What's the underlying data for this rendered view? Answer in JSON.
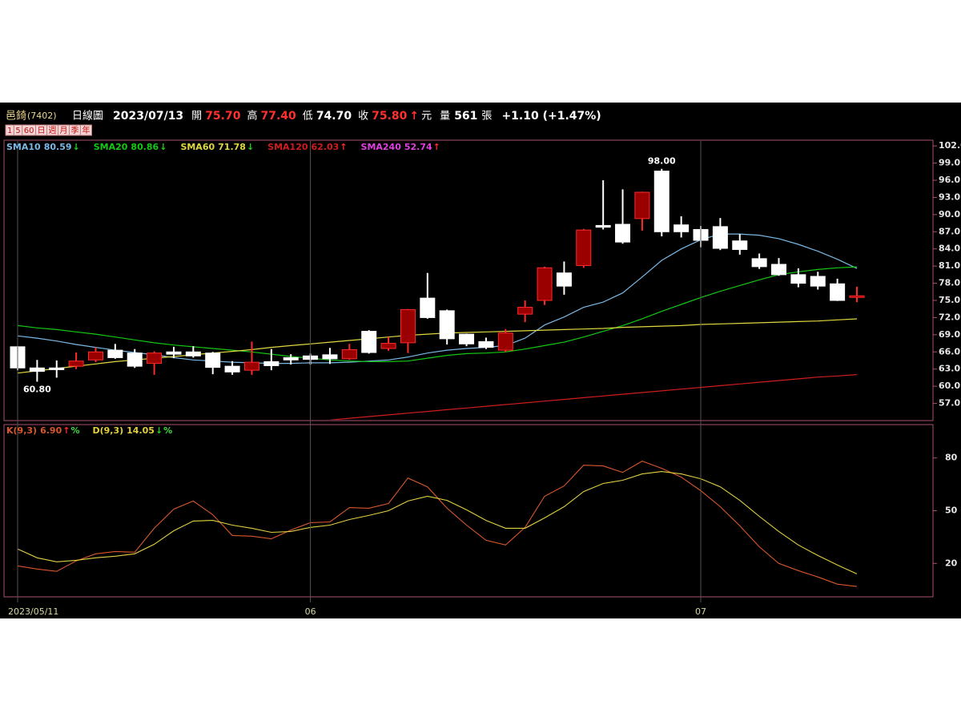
{
  "header": {
    "name": "邑錡",
    "code": "(7402)",
    "period": "日線圖",
    "date": "2023/07/13",
    "fields": [
      {
        "label": "開",
        "value": "75.70",
        "color": "#ff3030"
      },
      {
        "label": "高",
        "value": "77.40",
        "color": "#ff3030"
      },
      {
        "label": "低",
        "value": "74.70",
        "color": "#ffffff"
      },
      {
        "label": "收",
        "value": "75.80",
        "color": "#ff3030"
      }
    ],
    "arrow": "↑",
    "currency": "元",
    "volume_label": "量",
    "volume": "561",
    "volume_unit": "張",
    "change": "+1.10 (+1.47%)"
  },
  "buttons": [
    "1",
    "5",
    "60",
    "日",
    "週",
    "月",
    "季",
    "年"
  ],
  "chart_data": [
    {
      "type": "candlestick",
      "categories": [
        "2023/05/11",
        null,
        null,
        null,
        null,
        null,
        null,
        null,
        null,
        null,
        null,
        null,
        null,
        null,
        null,
        "06",
        null,
        null,
        null,
        null,
        null,
        null,
        null,
        null,
        null,
        null,
        null,
        null,
        null,
        null,
        null,
        null,
        null,
        null,
        null,
        "07",
        null,
        null,
        null,
        null,
        null,
        null,
        null,
        null
      ],
      "open": [
        66.9,
        63.2,
        63.2,
        63.5,
        64.6,
        66.3,
        65.8,
        64.0,
        66.0,
        66.0,
        65.8,
        63.5,
        62.8,
        64.3,
        65.0,
        65.3,
        65.5,
        64.8,
        69.6,
        66.6,
        67.6,
        75.4,
        73.2,
        69.1,
        67.8,
        66.3,
        72.6,
        75.0,
        79.8,
        81.1,
        88.1,
        88.3,
        89.3,
        97.6,
        88.2,
        87.4,
        87.9,
        85.4,
        82.3,
        81.3,
        79.5,
        79.2,
        77.9,
        75.7
      ],
      "high": [
        67.0,
        64.6,
        64.5,
        65.9,
        66.8,
        67.4,
        66.5,
        66.1,
        66.9,
        67.0,
        66.0,
        64.4,
        67.8,
        66.5,
        65.6,
        65.7,
        66.7,
        67.4,
        69.8,
        68.6,
        73.5,
        79.8,
        73.4,
        69.2,
        68.5,
        70.0,
        75.0,
        80.9,
        81.8,
        87.5,
        96.0,
        94.4,
        94.0,
        98.0,
        89.7,
        88.0,
        89.4,
        86.6,
        83.2,
        82.4,
        80.6,
        80.0,
        78.8,
        77.4
      ],
      "low": [
        62.8,
        60.8,
        61.5,
        63.0,
        64.2,
        64.8,
        63.2,
        62.0,
        64.9,
        65.0,
        62.1,
        62.0,
        62.0,
        62.8,
        63.8,
        63.8,
        63.9,
        64.6,
        65.7,
        66.2,
        65.8,
        71.8,
        67.3,
        67.0,
        66.5,
        66.0,
        71.2,
        74.2,
        76.0,
        80.7,
        87.4,
        84.9,
        87.2,
        86.2,
        86.0,
        84.3,
        83.8,
        83.0,
        80.5,
        79.3,
        77.3,
        76.9,
        74.9,
        74.7
      ],
      "close": [
        63.2,
        62.6,
        62.9,
        64.4,
        66.0,
        65.0,
        63.5,
        65.8,
        65.6,
        65.3,
        63.3,
        62.5,
        64.2,
        63.6,
        64.6,
        64.7,
        64.8,
        66.4,
        65.9,
        67.5,
        73.4,
        72.0,
        68.3,
        67.4,
        66.8,
        69.3,
        73.8,
        80.7,
        77.5,
        87.3,
        87.8,
        85.2,
        93.9,
        87.0,
        87.0,
        85.5,
        84.1,
        83.9,
        80.9,
        79.5,
        78.0,
        77.5,
        75.0,
        75.8
      ],
      "up_color": "#9a0000",
      "up_edge": "#ff2a2a",
      "down_color": "#ffffff",
      "high_label": "98.00",
      "low_label": "60.80",
      "ylim": [
        54,
        103
      ],
      "yticks": [
        {
          "value": 57,
          "label": "57.0"
        },
        {
          "value": 60,
          "label": "60.0"
        },
        {
          "value": 63,
          "label": "63.0"
        },
        {
          "value": 66,
          "label": "66.0"
        },
        {
          "value": 69,
          "label": "69.0"
        },
        {
          "value": 72,
          "label": "72.0"
        },
        {
          "value": 75,
          "label": "75.0"
        },
        {
          "value": 78,
          "label": "78.0"
        },
        {
          "value": 81,
          "label": "81.0"
        },
        {
          "value": 84,
          "label": "84.0"
        },
        {
          "value": 87,
          "label": "87.0"
        },
        {
          "value": 90,
          "label": "90.0"
        },
        {
          "value": 93,
          "label": "93.0"
        },
        {
          "value": 96,
          "label": "96.0"
        },
        {
          "value": 99,
          "label": "99.0"
        },
        {
          "value": 102,
          "label": "102.0"
        }
      ],
      "grid": true,
      "series": [
        {
          "name": "SMA10",
          "color": "#7ab8e6",
          "legend_value": "80.59",
          "trend": "↓",
          "values": [
            68.8,
            68.4,
            67.9,
            67.3,
            66.8,
            66.3,
            65.9,
            65.5,
            65.0,
            64.6,
            64.4,
            64.2,
            64.1,
            64.0,
            64.0,
            64.1,
            64.1,
            64.2,
            64.4,
            64.6,
            65.1,
            65.8,
            66.3,
            66.6,
            66.8,
            67.1,
            68.4,
            70.7,
            72.1,
            73.8,
            74.7,
            76.3,
            79.1,
            82.0,
            84.0,
            85.6,
            86.6,
            86.6,
            86.4,
            85.8,
            84.8,
            83.6,
            82.2,
            80.59
          ]
        },
        {
          "name": "SMA20",
          "color": "#14c814",
          "legend_value": "80.86",
          "trend": "↓",
          "values": [
            70.6,
            70.2,
            69.9,
            69.5,
            69.1,
            68.6,
            68.1,
            67.6,
            67.2,
            66.9,
            66.6,
            66.3,
            66.0,
            65.6,
            65.2,
            64.9,
            64.6,
            64.4,
            64.3,
            64.3,
            64.4,
            64.9,
            65.4,
            65.7,
            65.8,
            66.0,
            66.5,
            67.1,
            67.7,
            68.6,
            69.6,
            70.6,
            71.8,
            73.1,
            74.3,
            75.5,
            76.6,
            77.6,
            78.6,
            79.5,
            80.0,
            80.4,
            80.7,
            80.86
          ]
        },
        {
          "name": "SMA60",
          "color": "#e0d840",
          "legend_value": "71.78",
          "trend": "↓",
          "values": [
            62.3,
            62.7,
            63.1,
            63.5,
            63.9,
            64.3,
            64.6,
            64.9,
            65.2,
            65.5,
            65.8,
            66.1,
            66.4,
            66.8,
            67.1,
            67.4,
            67.7,
            68.0,
            68.3,
            68.6,
            68.9,
            69.1,
            69.3,
            69.4,
            69.5,
            69.6,
            69.7,
            69.8,
            69.9,
            70.0,
            70.1,
            70.3,
            70.4,
            70.5,
            70.6,
            70.8,
            70.9,
            71.0,
            71.1,
            71.2,
            71.3,
            71.4,
            71.6,
            71.78
          ]
        },
        {
          "name": "SMA120",
          "color": "#d01c1c",
          "legend_value": "62.03",
          "trend": "↑",
          "values": [
            null,
            null,
            null,
            null,
            null,
            null,
            null,
            null,
            null,
            null,
            null,
            null,
            null,
            null,
            null,
            null,
            54.1,
            54.4,
            54.7,
            55.0,
            55.3,
            55.6,
            55.9,
            56.2,
            56.5,
            56.8,
            57.1,
            57.4,
            57.7,
            58.0,
            58.3,
            58.6,
            58.9,
            59.2,
            59.5,
            59.8,
            60.1,
            60.4,
            60.7,
            61.0,
            61.3,
            61.6,
            61.8,
            62.03
          ]
        },
        {
          "name": "SMA240",
          "color": "#e040e0",
          "legend_value": "52.74",
          "trend": "↑"
        }
      ]
    },
    {
      "type": "line",
      "ylim": [
        1,
        99
      ],
      "yticks": [
        20,
        50,
        80
      ],
      "series": [
        {
          "name": "K(9,3)",
          "color": "#d9572c",
          "legend_value": "6.90",
          "trend": "↑",
          "unit": "%",
          "values": [
            18.6,
            16.8,
            15.5,
            21.4,
            25.5,
            26.8,
            26.4,
            40,
            50.9,
            55.5,
            47.7,
            35.9,
            35.5,
            34,
            39,
            43.2,
            43.6,
            51.8,
            51.4,
            54.1,
            68.6,
            63.6,
            51.4,
            41.8,
            33.2,
            30.5,
            40.5,
            58.2,
            64.1,
            75.9,
            75.5,
            71.8,
            78.2,
            74.1,
            69.1,
            61.4,
            52.3,
            41.4,
            29.5,
            20,
            15.9,
            12.3,
            8.2,
            6.9
          ]
        },
        {
          "name": "D(9,3)",
          "color": "#e0d040",
          "legend_value": "14.05",
          "trend": "↓",
          "unit": "%",
          "values": [
            28.2,
            23.2,
            20.9,
            21.8,
            23.2,
            24.1,
            25.5,
            30.9,
            38.6,
            44.1,
            44.5,
            41.8,
            40,
            37.7,
            38.2,
            40.5,
            41.8,
            45,
            47.3,
            50,
            55.5,
            58.2,
            55.9,
            50.5,
            44.5,
            40,
            40,
            45.9,
            52.3,
            60.9,
            65.5,
            67.3,
            70.9,
            72.3,
            70.9,
            68.2,
            63.6,
            55.9,
            46.8,
            38.2,
            30.5,
            24.5,
            19.1,
            14.05
          ]
        }
      ]
    }
  ]
}
